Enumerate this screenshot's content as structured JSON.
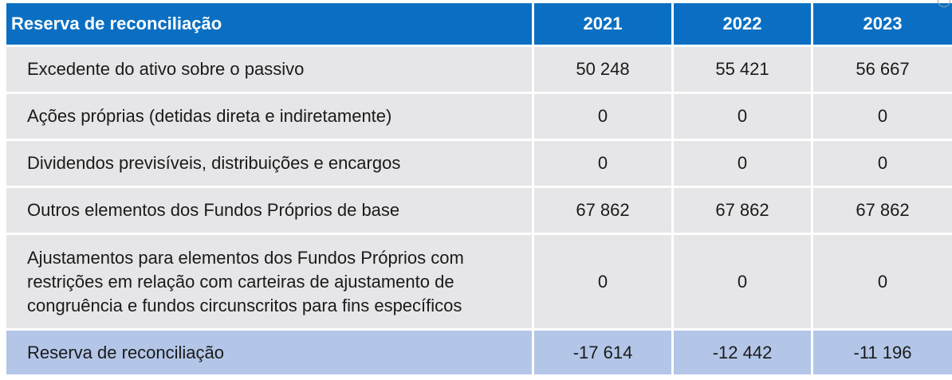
{
  "table": {
    "header": {
      "label": "Reserva de reconciliação",
      "years": [
        "2021",
        "2022",
        "2023"
      ]
    },
    "rows": [
      {
        "label": "Excedente do ativo sobre o passivo",
        "values": [
          "50 248",
          "55 421",
          "56 667"
        ]
      },
      {
        "label": "Ações próprias (detidas direta e indiretamente)",
        "values": [
          "0",
          "0",
          "0"
        ]
      },
      {
        "label": "Dividendos previsíveis, distribuições e encargos",
        "values": [
          "0",
          "0",
          "0"
        ]
      },
      {
        "label": "Outros elementos dos Fundos Próprios de base",
        "values": [
          "67 862",
          "67 862",
          "67 862"
        ]
      },
      {
        "label": "Ajustamentos para elementos dos Fundos Próprios com\nrestrições em relação com carteiras de ajustamento de\ncongruência e fundos circunscritos para fins específicos",
        "values": [
          "0",
          "0",
          "0"
        ]
      }
    ],
    "total": {
      "label": "Reserva de reconciliação",
      "values": [
        "-17 614",
        "-12 442",
        "-11 196"
      ]
    }
  },
  "colors": {
    "header_bg": "#0a6fc2",
    "row_bg": "#e6e6e8",
    "total_bg": "#b3c6e8"
  }
}
